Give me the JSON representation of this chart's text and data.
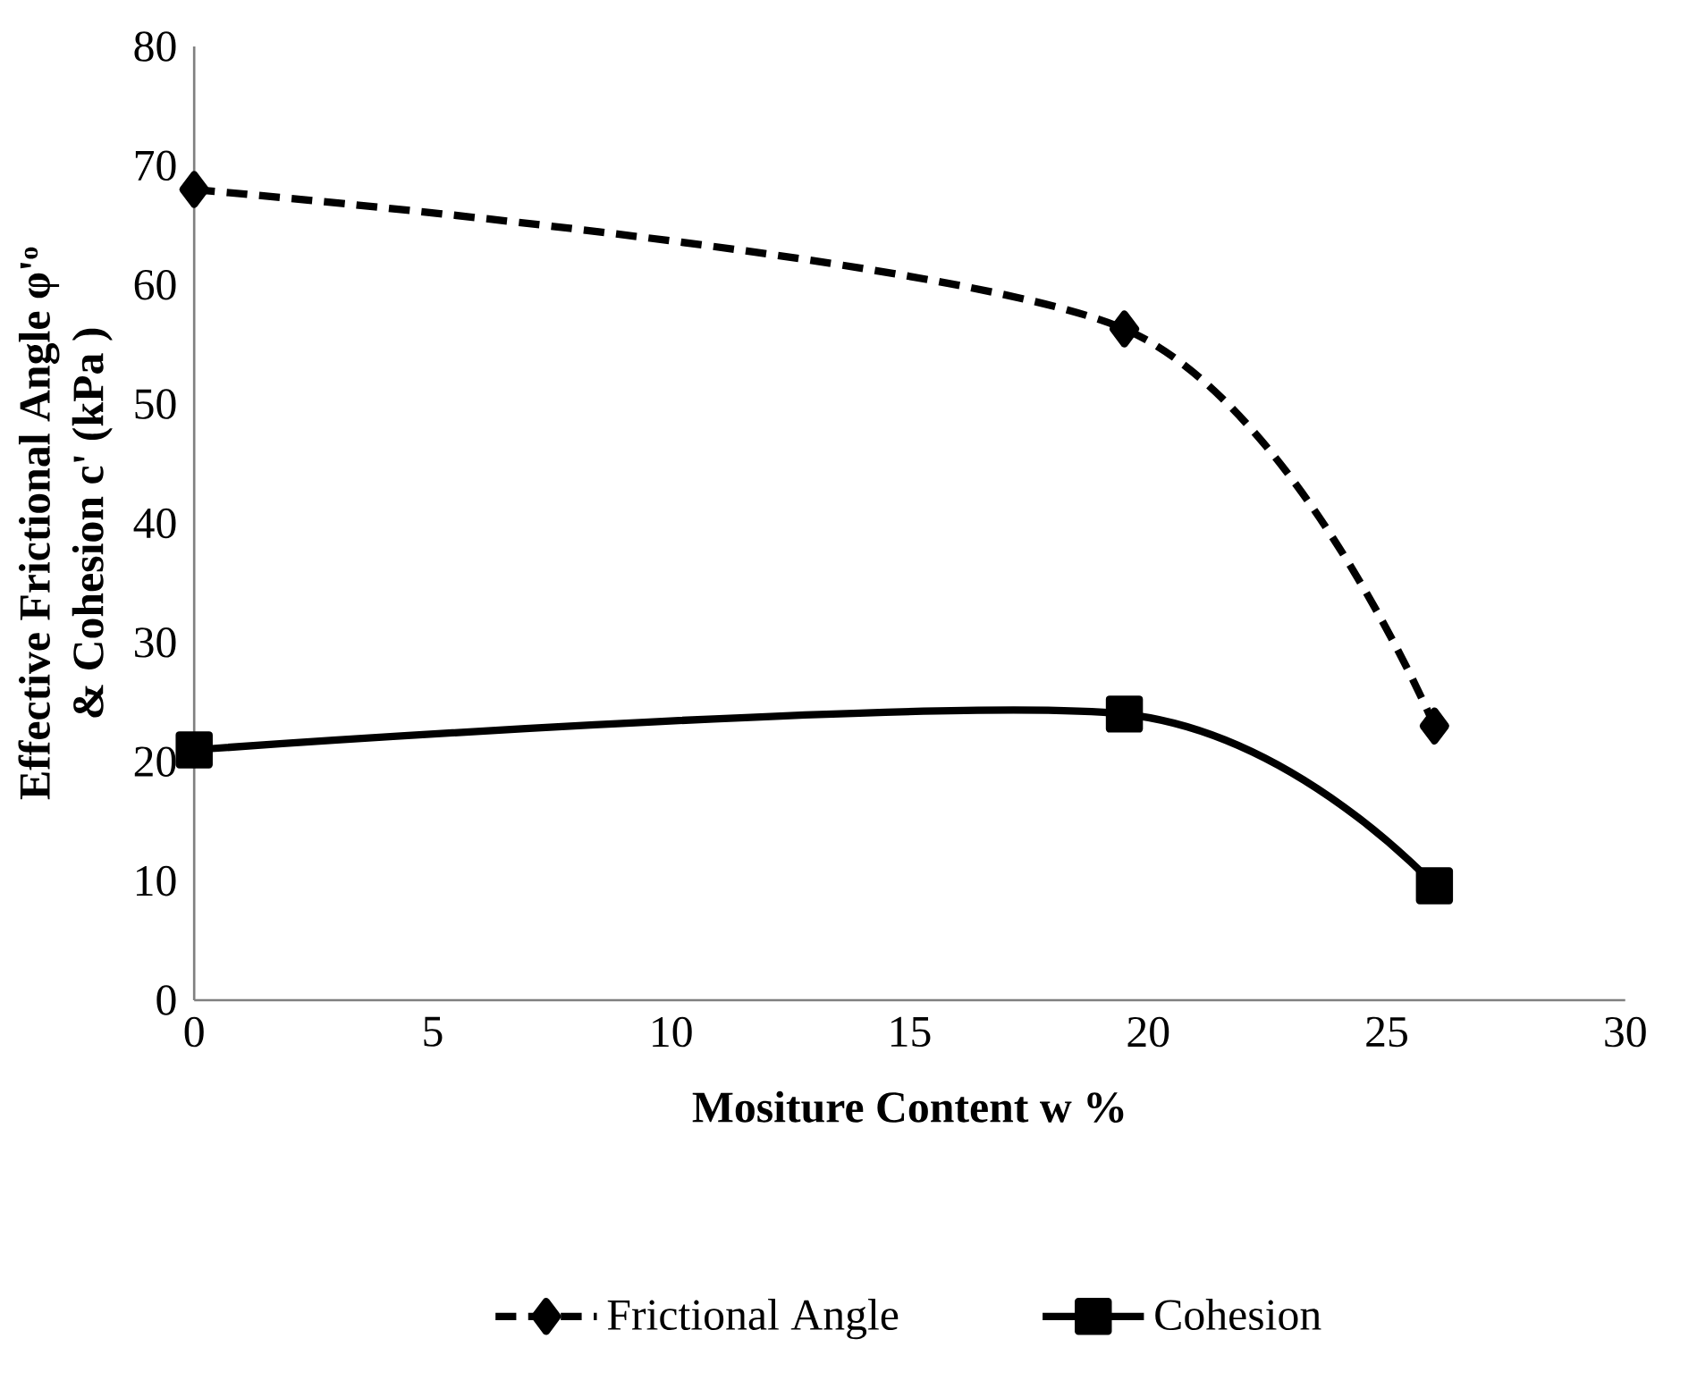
{
  "chart_data": {
    "type": "line",
    "xlabel": "Mositure Content w %",
    "ylabel": "Effective Frictional Angle φ'ᵒ\n& Cohesion c' (kPa )",
    "x": [
      0,
      19.5,
      26
    ],
    "series": [
      {
        "name": "Frictional Angle",
        "color": "#000000",
        "values": [
          68,
          56.3,
          23
        ],
        "marker": "diamond",
        "line_style": "dashed"
      },
      {
        "name": "Cohesion",
        "color": "#000000",
        "values": [
          21,
          24,
          9.6
        ],
        "marker": "square",
        "line_style": "solid"
      }
    ],
    "xlim": [
      0,
      30
    ],
    "ylim": [
      0,
      80
    ],
    "xticks": [
      0,
      5,
      10,
      15,
      20,
      25,
      30
    ],
    "yticks": [
      0,
      10,
      20,
      30,
      40,
      50,
      60,
      70,
      80
    ],
    "grid": false,
    "legend": "bottom"
  }
}
